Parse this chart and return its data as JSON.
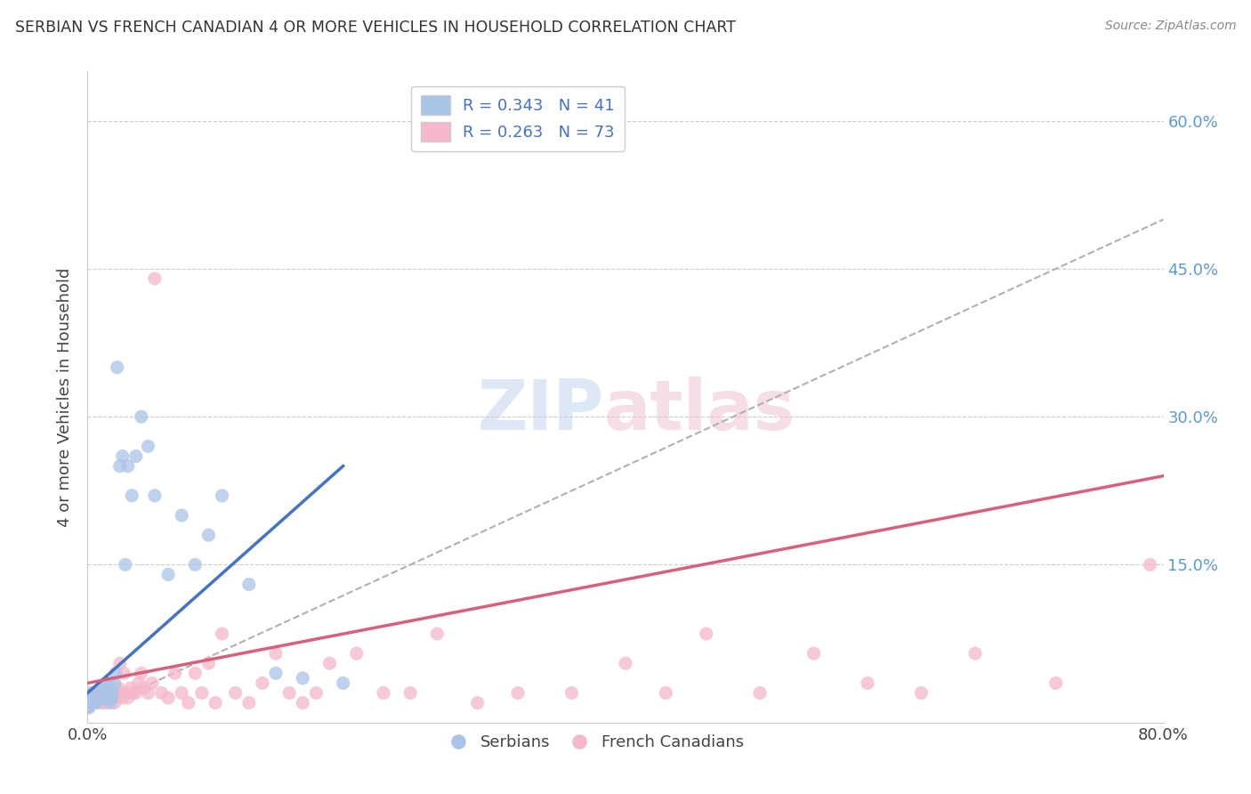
{
  "title": "SERBIAN VS FRENCH CANADIAN 4 OR MORE VEHICLES IN HOUSEHOLD CORRELATION CHART",
  "source": "Source: ZipAtlas.com",
  "ylabel": "4 or more Vehicles in Household",
  "xlim": [
    0.0,
    0.8
  ],
  "ylim": [
    -0.01,
    0.65
  ],
  "serbian_R": 0.343,
  "serbian_N": 41,
  "french_R": 0.263,
  "french_N": 73,
  "serbian_color": "#aac4e8",
  "french_color": "#f5b8ca",
  "serbian_line_color": "#4472c4",
  "french_line_color": "#d9607a",
  "trend_line_color": "#b0b0b0",
  "background_color": "#ffffff",
  "serbian_scatter_x": [
    0.001,
    0.002,
    0.003,
    0.004,
    0.005,
    0.005,
    0.006,
    0.007,
    0.008,
    0.009,
    0.01,
    0.011,
    0.012,
    0.013,
    0.014,
    0.015,
    0.016,
    0.017,
    0.018,
    0.019,
    0.02,
    0.021,
    0.022,
    0.024,
    0.026,
    0.028,
    0.03,
    0.033,
    0.036,
    0.04,
    0.045,
    0.05,
    0.06,
    0.07,
    0.08,
    0.09,
    0.1,
    0.12,
    0.14,
    0.16,
    0.19
  ],
  "serbian_scatter_y": [
    0.005,
    0.01,
    0.015,
    0.02,
    0.01,
    0.015,
    0.01,
    0.02,
    0.012,
    0.018,
    0.015,
    0.02,
    0.025,
    0.015,
    0.03,
    0.02,
    0.025,
    0.01,
    0.015,
    0.02,
    0.03,
    0.04,
    0.35,
    0.25,
    0.26,
    0.15,
    0.25,
    0.22,
    0.26,
    0.3,
    0.27,
    0.22,
    0.14,
    0.2,
    0.15,
    0.18,
    0.22,
    0.13,
    0.04,
    0.035,
    0.03
  ],
  "french_scatter_x": [
    0.001,
    0.002,
    0.003,
    0.004,
    0.005,
    0.006,
    0.007,
    0.008,
    0.009,
    0.01,
    0.011,
    0.012,
    0.013,
    0.014,
    0.015,
    0.016,
    0.017,
    0.018,
    0.019,
    0.02,
    0.021,
    0.022,
    0.023,
    0.024,
    0.025,
    0.026,
    0.027,
    0.028,
    0.03,
    0.032,
    0.034,
    0.036,
    0.038,
    0.04,
    0.042,
    0.045,
    0.048,
    0.05,
    0.055,
    0.06,
    0.065,
    0.07,
    0.075,
    0.08,
    0.085,
    0.09,
    0.095,
    0.1,
    0.11,
    0.12,
    0.13,
    0.14,
    0.15,
    0.16,
    0.17,
    0.18,
    0.2,
    0.22,
    0.24,
    0.26,
    0.29,
    0.32,
    0.36,
    0.4,
    0.43,
    0.46,
    0.5,
    0.54,
    0.58,
    0.62,
    0.66,
    0.72,
    0.79
  ],
  "french_scatter_y": [
    0.02,
    0.015,
    0.01,
    0.02,
    0.015,
    0.02,
    0.015,
    0.01,
    0.02,
    0.015,
    0.01,
    0.02,
    0.015,
    0.01,
    0.02,
    0.015,
    0.03,
    0.015,
    0.02,
    0.01,
    0.02,
    0.015,
    0.025,
    0.05,
    0.02,
    0.015,
    0.04,
    0.02,
    0.015,
    0.025,
    0.02,
    0.02,
    0.03,
    0.04,
    0.025,
    0.02,
    0.03,
    0.44,
    0.02,
    0.015,
    0.04,
    0.02,
    0.01,
    0.04,
    0.02,
    0.05,
    0.01,
    0.08,
    0.02,
    0.01,
    0.03,
    0.06,
    0.02,
    0.01,
    0.02,
    0.05,
    0.06,
    0.02,
    0.02,
    0.08,
    0.01,
    0.02,
    0.02,
    0.05,
    0.02,
    0.08,
    0.02,
    0.06,
    0.03,
    0.02,
    0.06,
    0.03,
    0.15
  ],
  "serbian_trend_x": [
    0.0,
    0.19
  ],
  "serbian_trend_y": [
    0.02,
    0.25
  ],
  "french_trend_x": [
    0.0,
    0.8
  ],
  "french_trend_y": [
    0.03,
    0.24
  ],
  "gray_trend_x": [
    0.0,
    0.8
  ],
  "gray_trend_y": [
    0.0,
    0.5
  ]
}
